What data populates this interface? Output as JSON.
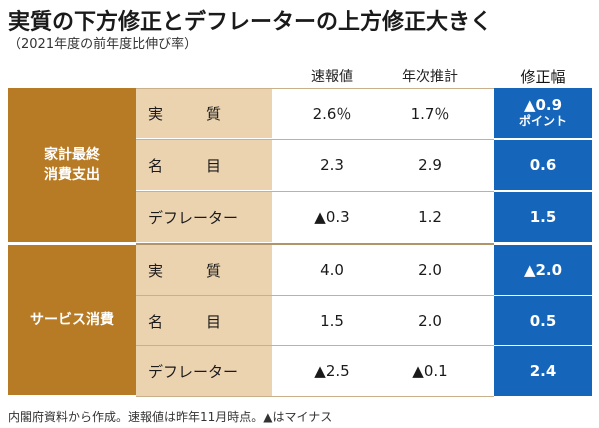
{
  "title": "実質の下方修正とデフレーターの上方修正大きく",
  "subtitle": "（2021年度の前年度比伸び率）",
  "columns": {
    "preliminary": "速報値",
    "annual": "年次推計",
    "adjustment": "修正幅"
  },
  "groups": [
    {
      "name_line1": "家計最終",
      "name_line2": "消費支出"
    },
    {
      "name_line1": "サービス消費",
      "name_line2": ""
    }
  ],
  "rows": [
    {
      "label": "実　質",
      "preliminary": "2.6％",
      "annual": "1.7％",
      "adjustment": "▲0.9",
      "adjustment_sub": "ポイント"
    },
    {
      "label": "名　目",
      "preliminary": "2.3",
      "annual": "2.9",
      "adjustment": "0.6",
      "adjustment_sub": ""
    },
    {
      "label": "デフレーター",
      "preliminary": "▲0.3",
      "annual": "1.2",
      "adjustment": "1.5",
      "adjustment_sub": ""
    },
    {
      "label": "実　質",
      "preliminary": "4.0",
      "annual": "2.0",
      "adjustment": "▲2.0",
      "adjustment_sub": ""
    },
    {
      "label": "名　目",
      "preliminary": "1.5",
      "annual": "2.0",
      "adjustment": "0.5",
      "adjustment_sub": ""
    },
    {
      "label": "デフレーター",
      "preliminary": "▲2.5",
      "annual": "▲0.1",
      "adjustment": "2.4",
      "adjustment_sub": ""
    }
  ],
  "note": "内閣府資料から作成。速報値は昨年11月時点。▲はマイナス",
  "colors": {
    "group_bg": "#b87b25",
    "label_bg": "#ecd3b0",
    "adjust_bg": "#1565ba"
  }
}
